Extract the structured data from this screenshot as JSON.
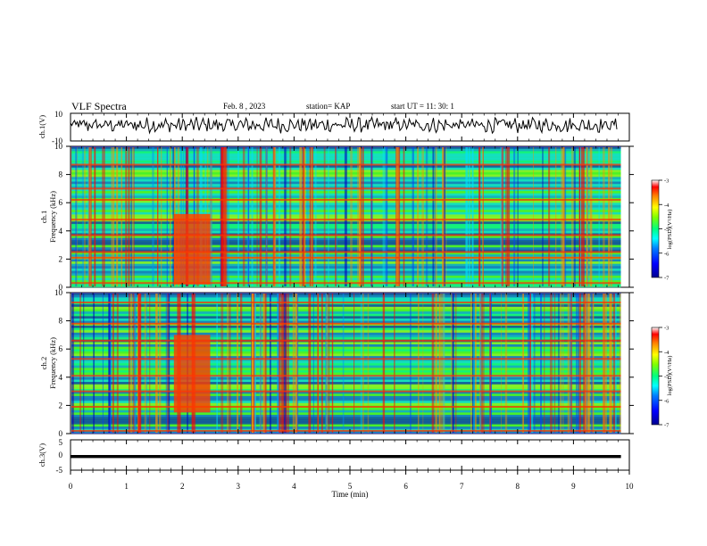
{
  "header": {
    "title": "VLF Spectra",
    "date": "Feb. 8 , 2023",
    "station": "station= KAP",
    "start": "start UT =  11: 30: 1"
  },
  "chart_data": [
    {
      "type": "line",
      "panel": "ch1-waveform",
      "ylabel": "ch.1(V)",
      "ylim": [
        -10,
        10
      ],
      "yticks": [
        10,
        -10
      ],
      "x_range": [
        0,
        10
      ],
      "series_summary": {
        "mean": 1.5,
        "min": -6.5,
        "max": 7.5
      }
    },
    {
      "type": "heatmap",
      "panel": "ch1-spectrogram",
      "ylabel_top": "ch.1",
      "ylabel": "Frequency (kHz)",
      "ylim": [
        0,
        10
      ],
      "yticks": [
        0,
        2,
        4,
        6,
        8,
        10
      ],
      "x_range_min": [
        0,
        9.85
      ],
      "time_range_min": [
        0,
        10
      ],
      "colorbar": {
        "label": "log(PSD)(V²/Hz)",
        "range": [
          -7,
          -3
        ],
        "ticks": [
          -3,
          -4,
          -5,
          -6,
          -7
        ]
      },
      "strong_bands_khz": [
        0.3,
        2.1,
        2.5,
        3.7,
        4.8,
        6.2,
        7.0,
        8.7
      ],
      "enhanced_interval": {
        "time_min": [
          1.85,
          2.5
        ],
        "freq_khz": [
          0.2,
          5.2
        ]
      }
    },
    {
      "type": "heatmap",
      "panel": "ch2-spectrogram",
      "ylabel_top": "ch.2",
      "ylabel": "Frequency (kHz)",
      "ylim": [
        0,
        10
      ],
      "yticks": [
        0,
        2,
        4,
        6,
        8,
        10
      ],
      "x_range_min": [
        0,
        9.85
      ],
      "time_range_min": [
        0,
        10
      ],
      "colorbar": {
        "label": "log(PSD)(V²/Hz)",
        "range": [
          -7,
          -3
        ],
        "ticks": [
          -3,
          -4,
          -5,
          -6,
          -7
        ]
      },
      "strong_bands_khz": [
        0.2,
        1.9,
        3.0,
        4.1,
        5.3,
        6.6,
        7.8,
        9.3
      ],
      "enhanced_interval": {
        "time_min": [
          1.85,
          2.5
        ],
        "freq_khz": [
          1.5,
          7.0
        ]
      }
    },
    {
      "type": "line",
      "panel": "ch3-waveform",
      "ylabel": "ch.3(V)",
      "ylim": [
        -5,
        5
      ],
      "yticks": [
        5,
        0,
        -5
      ],
      "x_range": [
        0,
        9.85
      ],
      "series_summary": {
        "mean": -0.5,
        "min": -1.0,
        "max": 0.0
      }
    }
  ],
  "xaxis": {
    "label": "Time  (min)",
    "ticks": [
      0,
      1,
      2,
      3,
      4,
      5,
      6,
      7,
      8,
      9,
      10
    ]
  }
}
